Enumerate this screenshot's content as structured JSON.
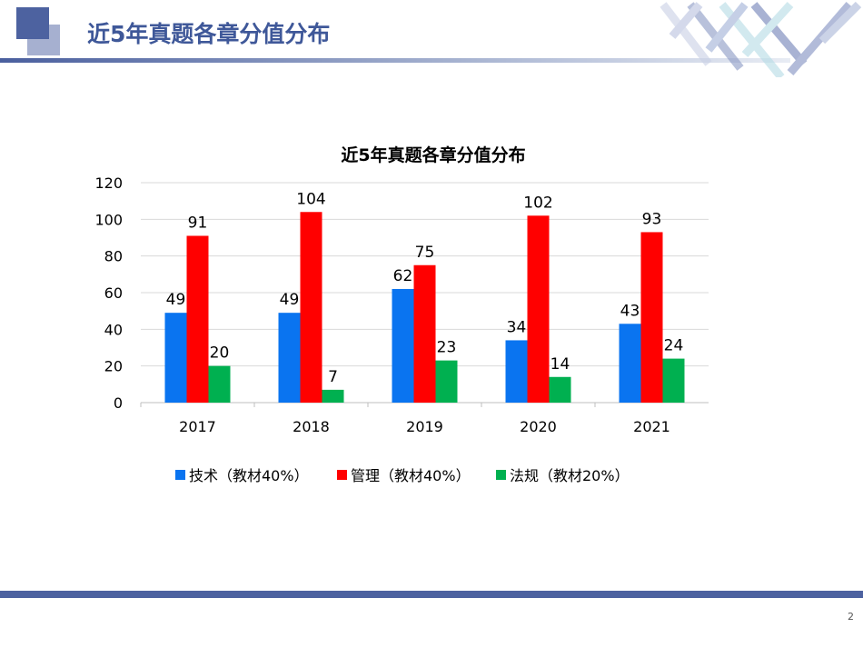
{
  "slide": {
    "title": "近5年真题各章分值分布",
    "page_number": "2"
  },
  "chart_data": {
    "type": "bar",
    "title": "近5年真题各章分值分布",
    "categories": [
      "2017",
      "2018",
      "2019",
      "2020",
      "2021"
    ],
    "series": [
      {
        "name": "技术（教材40%）",
        "color": "#0A74F0",
        "values": [
          49,
          49,
          62,
          34,
          43
        ]
      },
      {
        "name": "管理（教材40%）",
        "color": "#FF0000",
        "values": [
          91,
          104,
          75,
          102,
          93
        ]
      },
      {
        "name": "法规（教材20%）",
        "color": "#00B050",
        "values": [
          20,
          7,
          23,
          14,
          24
        ]
      }
    ],
    "ylim": [
      0,
      120
    ],
    "yticks": [
      0,
      20,
      40,
      60,
      80,
      100,
      120
    ],
    "grid": true,
    "legend": "bottom",
    "xlabel": "",
    "ylabel": ""
  }
}
